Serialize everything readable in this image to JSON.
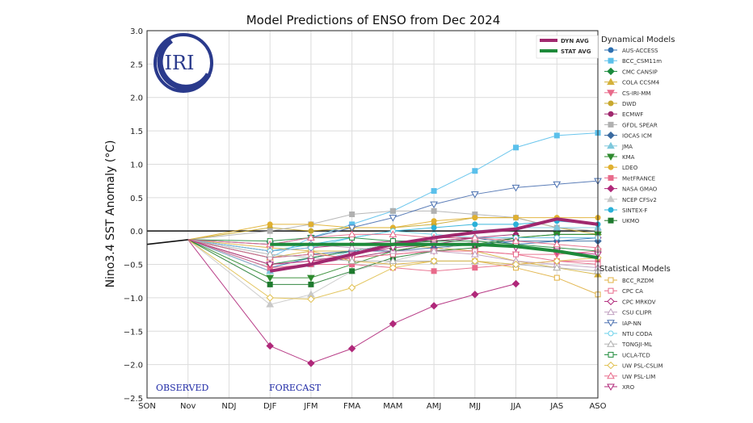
{
  "chart_data": {
    "type": "line",
    "title": "Model Predictions of ENSO from Dec 2024",
    "ylabel": "Nino3.4 SST Anomaly (°C)",
    "xlabel": "",
    "categories": [
      "SON",
      "Nov",
      "NDJ",
      "DJF",
      "JFM",
      "FMA",
      "MAM",
      "AMJ",
      "MJJ",
      "JJA",
      "JAS",
      "ASO"
    ],
    "ylim": [
      -2.5,
      3.0
    ],
    "yticks": [
      "3.0",
      "2.5",
      "2.0",
      "1.5",
      "1.0",
      "0.5",
      "0.0",
      "−0.5",
      "−1.0",
      "−1.5",
      "−2.0",
      "−2.5"
    ],
    "grid": true,
    "logo_text": "IRI",
    "annotations": {
      "observed": "OBSERVED",
      "forecast": "FORECAST"
    },
    "observed": {
      "x": [
        "SON",
        "Nov"
      ],
      "values": [
        -0.2,
        -0.13
      ]
    },
    "averages": [
      {
        "name": "DYN AVG",
        "color": "#a0286e",
        "values": [
          null,
          -0.13,
          null,
          -0.6,
          -0.5,
          -0.35,
          -0.2,
          -0.1,
          -0.02,
          0.03,
          0.18,
          0.1
        ]
      },
      {
        "name": "STAT AVG",
        "color": "#1e8a3a",
        "values": [
          null,
          -0.13,
          null,
          -0.2,
          -0.2,
          -0.2,
          -0.2,
          -0.2,
          -0.2,
          -0.23,
          -0.3,
          -0.4
        ]
      }
    ],
    "legend_dyn_title": "Dynamical Models",
    "legend_stat_title": "Statistical Models",
    "series": [
      {
        "name": "AUS-ACCESS",
        "group": "dyn",
        "color": "#2c6fb0",
        "marker": "circle",
        "values": [
          null,
          -0.13,
          null,
          -0.55,
          -0.4,
          -0.3,
          -0.2,
          -0.1,
          -0.1,
          -0.2,
          -0.15,
          -0.1
        ]
      },
      {
        "name": "BCC_CSM11m",
        "group": "dyn",
        "color": "#5bc0eb",
        "marker": "square",
        "values": [
          null,
          -0.13,
          null,
          -0.4,
          -0.1,
          0.1,
          0.3,
          0.6,
          0.9,
          1.25,
          1.43,
          1.47
        ]
      },
      {
        "name": "CMC CANSIP",
        "group": "dyn",
        "color": "#1a8a3c",
        "marker": "diamond",
        "values": [
          null,
          -0.13,
          null,
          -0.5,
          -0.4,
          -0.3,
          -0.2,
          -0.15,
          -0.1,
          -0.1,
          -0.05,
          -0.05
        ]
      },
      {
        "name": "COLA CCSM4",
        "group": "dyn",
        "color": "#d4b13a",
        "marker": "tri-up",
        "values": [
          null,
          -0.13,
          null,
          -0.4,
          -0.3,
          -0.3,
          -0.2,
          -0.25,
          -0.3,
          -0.45,
          -0.55,
          -0.65
        ]
      },
      {
        "name": "CS-IRI-MM",
        "group": "dyn",
        "color": "#e86a8a",
        "marker": "tri-down",
        "values": [
          null,
          -0.13,
          null,
          -0.5,
          -0.45,
          -0.4,
          -0.35,
          -0.3,
          -0.3,
          -0.35,
          -0.35,
          -0.3
        ]
      },
      {
        "name": "DWD",
        "group": "dyn",
        "color": "#c8a82e",
        "marker": "circle",
        "values": [
          null,
          -0.13,
          null,
          0.05,
          0.0,
          0.05,
          0.05,
          0.1,
          0.2,
          0.2,
          0.05,
          -0.05
        ]
      },
      {
        "name": "ECMWF",
        "group": "dyn",
        "color": "#a0286e",
        "marker": "circle",
        "values": [
          null,
          -0.13,
          null,
          -0.6,
          -0.5,
          -0.4,
          -0.3,
          -0.2,
          -0.1,
          -0.05,
          null,
          null
        ]
      },
      {
        "name": "GFDL SPEAR",
        "group": "dyn",
        "color": "#b0b0b0",
        "marker": "square",
        "values": [
          null,
          -0.13,
          null,
          0.0,
          0.1,
          0.25,
          0.3,
          0.3,
          0.25,
          0.2,
          0.05,
          0.0
        ]
      },
      {
        "name": "IOCAS ICM",
        "group": "dyn",
        "color": "#3a6aa0",
        "marker": "diamond",
        "values": [
          null,
          -0.13,
          null,
          -0.4,
          -0.35,
          -0.3,
          -0.3,
          -0.25,
          -0.2,
          -0.15,
          -0.15,
          -0.15
        ]
      },
      {
        "name": "JMA",
        "group": "dyn",
        "color": "#7ec8dc",
        "marker": "tri-up",
        "values": [
          null,
          -0.13,
          null,
          -0.6,
          -0.5,
          -0.3,
          -0.2,
          -0.1,
          0.0,
          0.05,
          0.05,
          0.05
        ]
      },
      {
        "name": "KMA",
        "group": "dyn",
        "color": "#2e8a2e",
        "marker": "tri-down",
        "values": [
          null,
          -0.13,
          null,
          -0.7,
          -0.7,
          -0.5,
          -0.3,
          -0.2,
          -0.2,
          -0.1,
          -0.05,
          -0.05
        ]
      },
      {
        "name": "LDEO",
        "group": "dyn",
        "color": "#e0b030",
        "marker": "circle",
        "values": [
          null,
          -0.13,
          null,
          0.1,
          0.1,
          0.05,
          0.05,
          0.15,
          0.2,
          0.2,
          0.2,
          0.2
        ]
      },
      {
        "name": "MetFRANCE",
        "group": "dyn",
        "color": "#e86a8a",
        "marker": "square",
        "values": [
          null,
          -0.13,
          null,
          -0.55,
          -0.5,
          -0.5,
          -0.55,
          -0.6,
          -0.55,
          -0.5,
          -0.45,
          -0.45
        ]
      },
      {
        "name": "NASA GMAO",
        "group": "dyn",
        "color": "#b0287a",
        "marker": "diamond",
        "values": [
          null,
          -0.13,
          null,
          -1.72,
          -1.98,
          -1.76,
          -1.39,
          -1.12,
          -0.95,
          -0.79,
          null,
          null
        ]
      },
      {
        "name": "NCEP CFSv2",
        "group": "dyn",
        "color": "#c8c8c8",
        "marker": "tri-up",
        "values": [
          null,
          -0.13,
          null,
          -1.1,
          -0.95,
          -0.6,
          -0.45,
          -0.3,
          -0.15,
          -0.1,
          null,
          null
        ]
      },
      {
        "name": "SINTEX-F",
        "group": "dyn",
        "color": "#2ab0d8",
        "marker": "circle",
        "values": [
          null,
          -0.13,
          null,
          -0.3,
          -0.2,
          -0.1,
          0.0,
          0.05,
          0.1,
          0.1,
          0.15,
          0.1
        ]
      },
      {
        "name": "UKMO",
        "group": "dyn",
        "color": "#1e7a2e",
        "marker": "square",
        "values": [
          null,
          -0.13,
          null,
          -0.8,
          -0.8,
          -0.6,
          -0.4,
          -0.3,
          -0.25,
          -0.1,
          null,
          null
        ]
      },
      {
        "name": "BCC_RZDM",
        "group": "stat",
        "color": "#e0b040",
        "marker": "square-open",
        "values": [
          null,
          -0.13,
          null,
          -0.25,
          -0.3,
          -0.45,
          -0.5,
          -0.45,
          -0.45,
          -0.55,
          -0.7,
          -0.95
        ]
      },
      {
        "name": "CPC CA",
        "group": "stat",
        "color": "#e86a8a",
        "marker": "square-open",
        "values": [
          null,
          -0.13,
          null,
          -0.4,
          -0.35,
          -0.4,
          -0.35,
          -0.3,
          -0.3,
          -0.35,
          -0.45,
          -0.5
        ]
      },
      {
        "name": "CPC MRKOV",
        "group": "stat",
        "color": "#b0287a",
        "marker": "diamond-open",
        "values": [
          null,
          -0.13,
          null,
          -0.3,
          -0.25,
          -0.2,
          -0.15,
          -0.15,
          -0.1,
          -0.1,
          -0.1,
          -0.1
        ]
      },
      {
        "name": "CSU CLIPR",
        "group": "stat",
        "color": "#c0a0c0",
        "marker": "tri-up-open",
        "values": [
          null,
          -0.13,
          null,
          -0.2,
          -0.2,
          -0.25,
          -0.3,
          -0.3,
          -0.35,
          -0.45,
          -0.5,
          -0.55
        ]
      },
      {
        "name": "IAP-NN",
        "group": "stat",
        "color": "#4a70b0",
        "marker": "tri-down-open",
        "values": [
          null,
          -0.13,
          null,
          -0.2,
          -0.1,
          0.05,
          0.2,
          0.4,
          0.55,
          0.65,
          0.7,
          0.75
        ]
      },
      {
        "name": "NTU CODA",
        "group": "stat",
        "color": "#6ad0ea",
        "marker": "circle-open",
        "values": [
          null,
          -0.13,
          null,
          -0.3,
          -0.25,
          -0.1,
          0.0,
          -0.05,
          -0.1,
          -0.1,
          -0.1,
          -0.1
        ]
      },
      {
        "name": "TONGJI-ML",
        "group": "stat",
        "color": "#b0b0b0",
        "marker": "tri-up-open",
        "values": [
          null,
          -0.13,
          null,
          -0.35,
          -0.4,
          -0.45,
          -0.45,
          -0.45,
          -0.45,
          -0.5,
          -0.55,
          -0.6
        ]
      },
      {
        "name": "UCLA-TCD",
        "group": "stat",
        "color": "#1e8a3a",
        "marker": "square-open",
        "values": [
          null,
          -0.13,
          null,
          -0.15,
          -0.1,
          -0.1,
          -0.15,
          -0.15,
          -0.15,
          -0.2,
          -0.25,
          -0.3
        ]
      },
      {
        "name": "UW PSL-CSLIM",
        "group": "stat",
        "color": "#e0c050",
        "marker": "diamond-open",
        "values": [
          null,
          -0.13,
          null,
          -1.0,
          -1.02,
          -0.85,
          -0.55,
          -0.45,
          -0.45,
          -0.5,
          -0.45,
          -0.4
        ]
      },
      {
        "name": "UW PSL-LIM",
        "group": "stat",
        "color": "#e86a8a",
        "marker": "tri-up-open",
        "values": [
          null,
          -0.13,
          null,
          -0.2,
          -0.1,
          -0.05,
          -0.05,
          -0.1,
          -0.1,
          -0.15,
          -0.2,
          -0.25
        ]
      },
      {
        "name": "XRO",
        "group": "stat",
        "color": "#b0287a",
        "marker": "tri-down-open",
        "values": [
          null,
          -0.13,
          null,
          -0.5,
          -0.45,
          -0.35,
          -0.25,
          -0.2,
          -0.2,
          -0.25,
          -0.3,
          -0.35
        ]
      }
    ]
  }
}
